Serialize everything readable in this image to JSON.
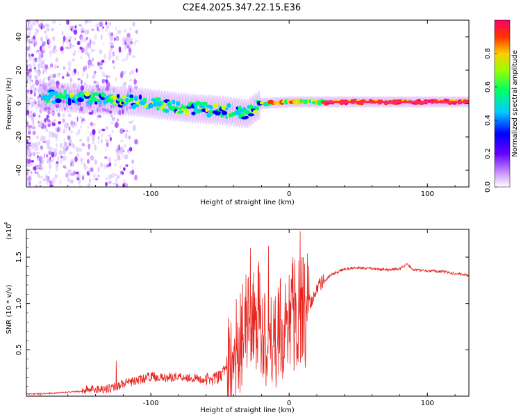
{
  "title": "C2E4.2025.347.22.15.E36",
  "chart_data": [
    {
      "type": "heatmap",
      "name": "spectrogram",
      "xlabel": "Height of straight line (km)",
      "ylabel": "Frequency (Hz)",
      "xlim": [
        -190,
        130
      ],
      "ylim": [
        -50,
        50
      ],
      "xticks": [
        -100,
        0,
        100
      ],
      "yticks": [
        -40,
        -20,
        0,
        20,
        40
      ],
      "colorbar": {
        "label": "Normalized spectral amplitude",
        "range": [
          0.0,
          1.0
        ],
        "ticks": [
          0.0,
          0.2,
          0.4,
          0.6,
          0.8
        ],
        "tick_labels": [
          "0.0",
          "0.2",
          "0.4",
          "0.6",
          "0.8"
        ],
        "colormap": [
          "#ffffff",
          "#9933ff",
          "#0000ff",
          "#00ccff",
          "#00ff66",
          "#ccff00",
          "#ffcc00",
          "#ff3300",
          "#ff0066"
        ]
      },
      "band_centerline": [
        {
          "x": -170,
          "y": 4
        },
        {
          "x": -150,
          "y": 3
        },
        {
          "x": -130,
          "y": 2
        },
        {
          "x": -110,
          "y": 1
        },
        {
          "x": -90,
          "y": -1
        },
        {
          "x": -70,
          "y": -3
        },
        {
          "x": -50,
          "y": -4
        },
        {
          "x": -30,
          "y": -6
        },
        {
          "x": -20,
          "y": 0
        },
        {
          "x": 0,
          "y": 1
        },
        {
          "x": 30,
          "y": 1
        },
        {
          "x": 60,
          "y": 1
        },
        {
          "x": 100,
          "y": 1
        },
        {
          "x": 130,
          "y": 1
        }
      ]
    },
    {
      "type": "line",
      "name": "snr",
      "xlabel": "Height of straight line (km)",
      "ylabel": "SNR (10 * v/v)",
      "scale_label": "(x10",
      "scale_exponent": "4",
      "xlim": [
        -190,
        130
      ],
      "ylim": [
        0,
        1.8
      ],
      "xticks": [
        -100,
        0,
        100
      ],
      "yticks": [
        0.5,
        1.0,
        1.5
      ],
      "ytick_labels": [
        "0.5",
        "1.0",
        "1.5"
      ],
      "line_color": "#e8231e",
      "x": [
        -190,
        -170,
        -150,
        -130,
        -120,
        -110,
        -100,
        -90,
        -80,
        -70,
        -60,
        -50,
        -45,
        -40,
        -35,
        -30,
        -25,
        -20,
        -15,
        -10,
        -5,
        0,
        5,
        10,
        15,
        20,
        30,
        40,
        50,
        60,
        70,
        80,
        85,
        90,
        100,
        110,
        120,
        130
      ],
      "y": [
        0.02,
        0.03,
        0.05,
        0.07,
        0.12,
        0.15,
        0.2,
        0.18,
        0.2,
        0.18,
        0.16,
        0.18,
        0.3,
        0.45,
        0.6,
        0.8,
        1.0,
        0.7,
        0.6,
        0.65,
        0.75,
        0.9,
        0.9,
        1.0,
        0.95,
        1.15,
        1.3,
        1.37,
        1.38,
        1.37,
        1.36,
        1.37,
        1.42,
        1.36,
        1.35,
        1.34,
        1.32,
        1.3
      ],
      "peaks": [
        {
          "x": -125,
          "y": 0.38
        },
        {
          "x": -32,
          "y": 1.0
        },
        {
          "x": -28,
          "y": 1.6
        },
        {
          "x": -22,
          "y": 1.45
        },
        {
          "x": -15,
          "y": 1.62
        },
        {
          "x": -3,
          "y": 0.95
        },
        {
          "x": 8,
          "y": 1.78
        },
        {
          "x": 10,
          "y": 1.5
        }
      ]
    }
  ]
}
